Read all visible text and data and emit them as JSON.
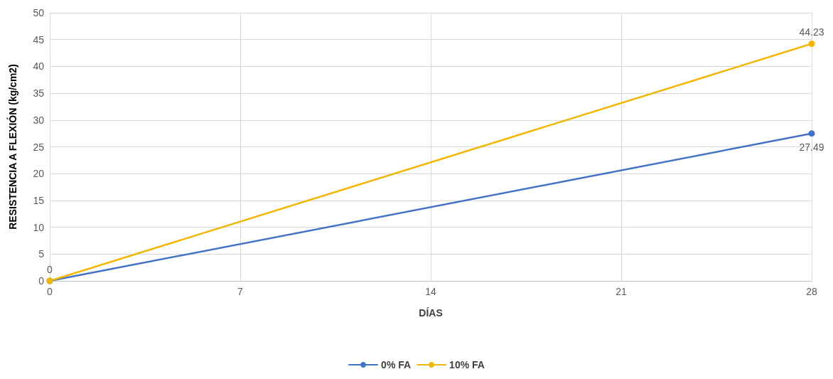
{
  "chart_data": {
    "type": "line",
    "xlabel": "DÍAS",
    "ylabel": "RESISTENCIA A FLEXIÓN (kg/cm2)",
    "x": [
      0,
      28
    ],
    "series": [
      {
        "name": "0% FA",
        "color": "#4472c4",
        "values": [
          0,
          27.49
        ],
        "value_labels": [
          null,
          "27.49"
        ]
      },
      {
        "name": "10% FA",
        "color": "#f2b705",
        "values": [
          0,
          44.23
        ],
        "value_labels": [
          "0",
          "44.23"
        ]
      }
    ],
    "xlim": [
      0,
      28
    ],
    "xticks": [
      0,
      7,
      14,
      21,
      28
    ],
    "ylim": [
      0,
      50
    ],
    "yticks": [
      0,
      5,
      10,
      15,
      20,
      25,
      30,
      35,
      40,
      45,
      50
    ],
    "grid": true,
    "legend": "bottom",
    "marker": "circle",
    "line_style": "solid"
  }
}
